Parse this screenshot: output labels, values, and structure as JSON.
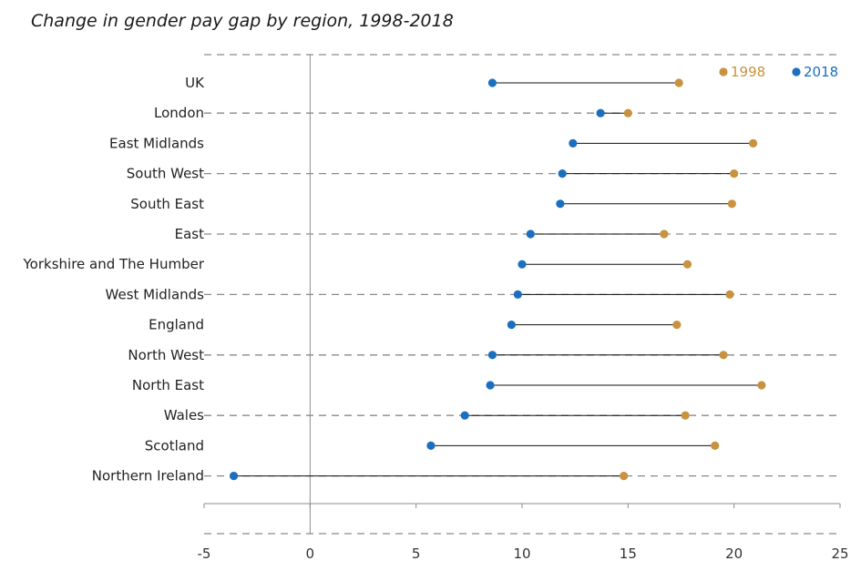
{
  "chart_data": {
    "type": "dot-range",
    "title": "Change in gender pay gap by region, 1998-2018",
    "categories": [
      "UK",
      "London",
      "East Midlands",
      "South West",
      "South East",
      "East",
      "Yorkshire and The Humber",
      "West Midlands",
      "England",
      "North West",
      "North East",
      "Wales",
      "Scotland",
      "Northern Ireland"
    ],
    "series": [
      {
        "name": "1998",
        "color": "#C8923F",
        "values": [
          17.4,
          15.0,
          20.9,
          20.0,
          19.9,
          16.7,
          17.8,
          19.8,
          17.3,
          19.5,
          21.3,
          17.7,
          19.1,
          14.8
        ]
      },
      {
        "name": "2018",
        "color": "#1A6FBF",
        "values": [
          8.6,
          13.7,
          12.4,
          11.9,
          11.8,
          10.4,
          10.0,
          9.8,
          9.5,
          8.6,
          8.5,
          7.3,
          5.7,
          -3.6
        ]
      }
    ],
    "x_ticks": [
      "-5",
      "0",
      "5",
      "10",
      "15",
      "20",
      "25"
    ],
    "xlim": [
      -5,
      25
    ],
    "legend_position": "top-right",
    "gridlines": "dashed"
  }
}
